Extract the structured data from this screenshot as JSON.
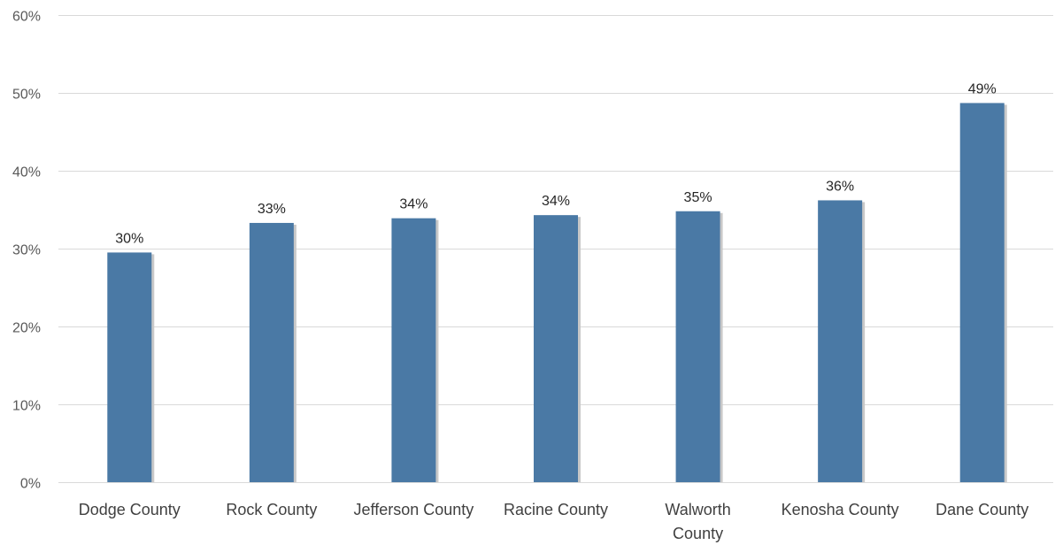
{
  "chart_data": {
    "type": "bar",
    "title": "",
    "xlabel": "",
    "ylabel": "",
    "categories": [
      [
        "Dodge County"
      ],
      [
        "Rock County"
      ],
      [
        "Jefferson County"
      ],
      [
        "Racine County"
      ],
      [
        "Walworth",
        "County"
      ],
      [
        "Kenosha County"
      ],
      [
        "Dane County"
      ]
    ],
    "values": [
      29.5,
      33.3,
      33.9,
      34.3,
      34.8,
      36.2,
      48.7
    ],
    "data_labels": [
      "30%",
      "33%",
      "34%",
      "34%",
      "35%",
      "36%",
      "49%"
    ],
    "yticks": [
      0,
      10,
      20,
      30,
      40,
      50,
      60
    ],
    "ytick_labels": [
      "0%",
      "10%",
      "20%",
      "30%",
      "40%",
      "50%",
      "60%"
    ],
    "ylim": [
      0,
      60
    ],
    "grid": true,
    "legend": "none",
    "bar_color": "#4a79a5"
  }
}
